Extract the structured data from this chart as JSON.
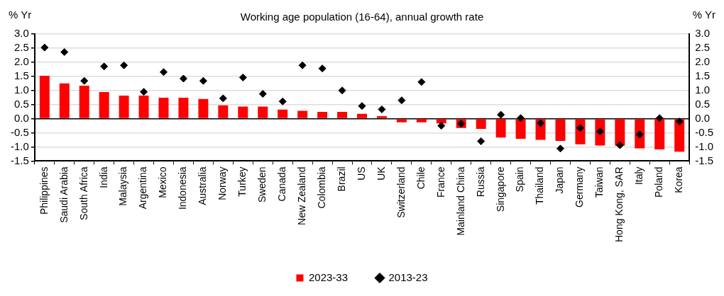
{
  "chart_data": {
    "type": "bar",
    "title": "Working age population (16-64), annual growth rate",
    "ylabel": "% Yr",
    "y2label": "% Yr",
    "categories": [
      "Philippines",
      "Saudi Arabia",
      "South Africa",
      "India",
      "Malaysia",
      "Argentina",
      "Mexico",
      "Indonesia",
      "Australia",
      "Norway",
      "Turkey",
      "Sweden",
      "Canada",
      "New Zealand",
      "Colombia",
      "Brazil",
      "US",
      "UK",
      "Switzerland",
      "Chile",
      "France",
      "Mainland China",
      "Russia",
      "Singapore",
      "Spain",
      "Thailand",
      "Japan",
      "Germany",
      "Taiwan",
      "Hong Kong, SAR",
      "Italy",
      "Poland",
      "Korea"
    ],
    "series": [
      {
        "name": "2023-33",
        "color": "#ff0000",
        "values": [
          1.52,
          1.25,
          1.17,
          0.94,
          0.82,
          0.82,
          0.74,
          0.74,
          0.7,
          0.47,
          0.43,
          0.43,
          0.32,
          0.28,
          0.24,
          0.24,
          0.17,
          0.09,
          -0.13,
          -0.13,
          -0.17,
          -0.33,
          -0.36,
          -0.67,
          -0.71,
          -0.75,
          -0.79,
          -0.91,
          -0.95,
          -0.96,
          -1.05,
          -1.09,
          -1.17
        ]
      },
      {
        "name": "2013-23",
        "type": "scatter",
        "marker": "diamond",
        "color": "#000000",
        "values": [
          2.52,
          2.36,
          1.34,
          1.85,
          1.89,
          0.95,
          1.65,
          1.42,
          1.34,
          0.72,
          1.46,
          0.88,
          0.61,
          1.89,
          1.78,
          1.0,
          0.45,
          0.33,
          0.65,
          1.3,
          -0.25,
          -0.18,
          -0.8,
          0.14,
          0.02,
          -0.16,
          -1.06,
          -0.33,
          -0.45,
          -0.94,
          -0.56,
          0.02,
          -0.1
        ]
      }
    ],
    "ylim": [
      -1.5,
      3
    ],
    "yticks": [
      -1.5,
      {
        "value": -1,
        "label": "-1.0"
      },
      -0.5,
      {
        "value": 0,
        "label": "0.0"
      },
      0.5,
      {
        "value": 1,
        "label": "1.0"
      },
      1.5,
      {
        "value": 2,
        "label": "2.0"
      },
      2.5,
      {
        "value": 3,
        "label": "3.0"
      }
    ],
    "y2lim": [
      -1.5,
      3
    ],
    "y2ticks": [
      -1.5,
      {
        "value": -1,
        "label": "-1.0"
      },
      -0.5,
      {
        "value": 0,
        "label": "0.0"
      },
      0.5,
      {
        "value": 1,
        "label": "1.0"
      },
      1.5,
      {
        "value": 2,
        "label": "2.0"
      },
      2.5,
      {
        "value": 3,
        "label": "3.0"
      }
    ],
    "grid": "y",
    "legend": "bottom"
  }
}
